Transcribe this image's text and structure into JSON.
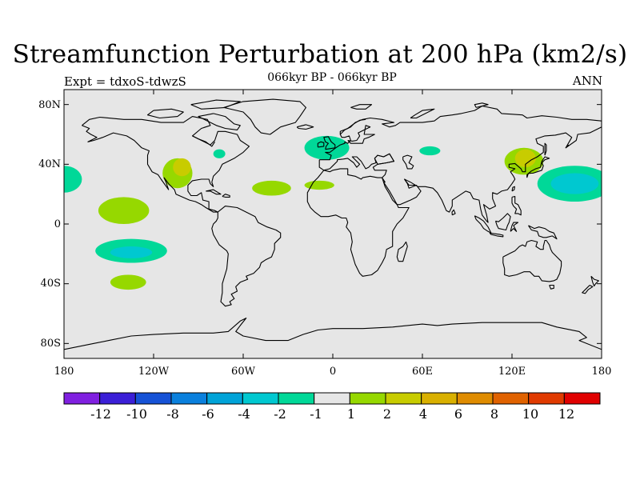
{
  "title": "Streamfunction Perturbation at 200 hPa (km2/s)",
  "subtitle_left": "Expt = tdxoS-tdwzS",
  "subtitle_center": "066kyr BP - 066kyr BP",
  "subtitle_right": "ANN",
  "map": {
    "projection": "cylindrical equidistant",
    "lon_range": [
      -180,
      180
    ],
    "lat_range": [
      -90,
      90
    ],
    "background_color": "#e6e6e6",
    "coastline_color": "#000000"
  },
  "axes": {
    "y_ticks": [
      "80N",
      "40N",
      "0",
      "40S",
      "80S"
    ],
    "y_tick_values": [
      80,
      40,
      0,
      -40,
      -80
    ],
    "x_ticks": [
      "180",
      "120W",
      "60W",
      "0",
      "60E",
      "120E",
      "180"
    ],
    "x_tick_values": [
      -180,
      -120,
      -60,
      0,
      60,
      120,
      180
    ]
  },
  "colorbar": {
    "labels": [
      "-12",
      "-10",
      "-8",
      "-6",
      "-4",
      "-2",
      "-1",
      "1",
      "2",
      "4",
      "6",
      "8",
      "10",
      "12"
    ],
    "colors": [
      "#8020e0",
      "#3b1fd7",
      "#1652d6",
      "#0a80dd",
      "#00a3d8",
      "#00c8d0",
      "#00d898",
      "#e6e6e6",
      "#96d800",
      "#c8cc00",
      "#d9b000",
      "#df8c00",
      "#e06200",
      "#e03a00",
      "#e00000"
    ]
  },
  "chart_data": {
    "type": "heatmap",
    "variable": "Streamfunction Perturbation at 200 hPa",
    "units": "km2/s",
    "anomalies": [
      {
        "lon_center": -180,
        "lat_center": 30,
        "class": "-1",
        "color": "#00d898"
      },
      {
        "lon_center": -140,
        "lat_center": 9,
        "class": "1",
        "color": "#96d800"
      },
      {
        "lon_center": -135,
        "lat_center": -18,
        "class": "-1",
        "color": "#00d898"
      },
      {
        "lon_center": -135,
        "lat_center": -19,
        "class": "-2",
        "color": "#00c8d0"
      },
      {
        "lon_center": -137,
        "lat_center": -39,
        "class": "1",
        "color": "#96d800"
      },
      {
        "lon_center": -104,
        "lat_center": 34,
        "class": "1",
        "color": "#96d800"
      },
      {
        "lon_center": -101,
        "lat_center": 38,
        "class": "2",
        "color": "#c8cc00"
      },
      {
        "lon_center": -76,
        "lat_center": 47,
        "class": "-1",
        "color": "#00d898"
      },
      {
        "lon_center": -41,
        "lat_center": 24,
        "class": "1",
        "color": "#96d800"
      },
      {
        "lon_center": -9,
        "lat_center": 26,
        "class": "1",
        "color": "#96d800"
      },
      {
        "lon_center": -4,
        "lat_center": 51,
        "class": "-1",
        "color": "#00d898"
      },
      {
        "lon_center": 65,
        "lat_center": 49,
        "class": "-1",
        "color": "#00d898"
      },
      {
        "lon_center": 128,
        "lat_center": 42,
        "class": "1",
        "color": "#96d800"
      },
      {
        "lon_center": 129,
        "lat_center": 44,
        "class": "2",
        "color": "#c8cc00"
      },
      {
        "lon_center": 162,
        "lat_center": 27,
        "class": "-1",
        "color": "#00d898"
      },
      {
        "lon_center": 162,
        "lat_center": 27,
        "class": "-2",
        "color": "#00c8d0"
      }
    ]
  }
}
